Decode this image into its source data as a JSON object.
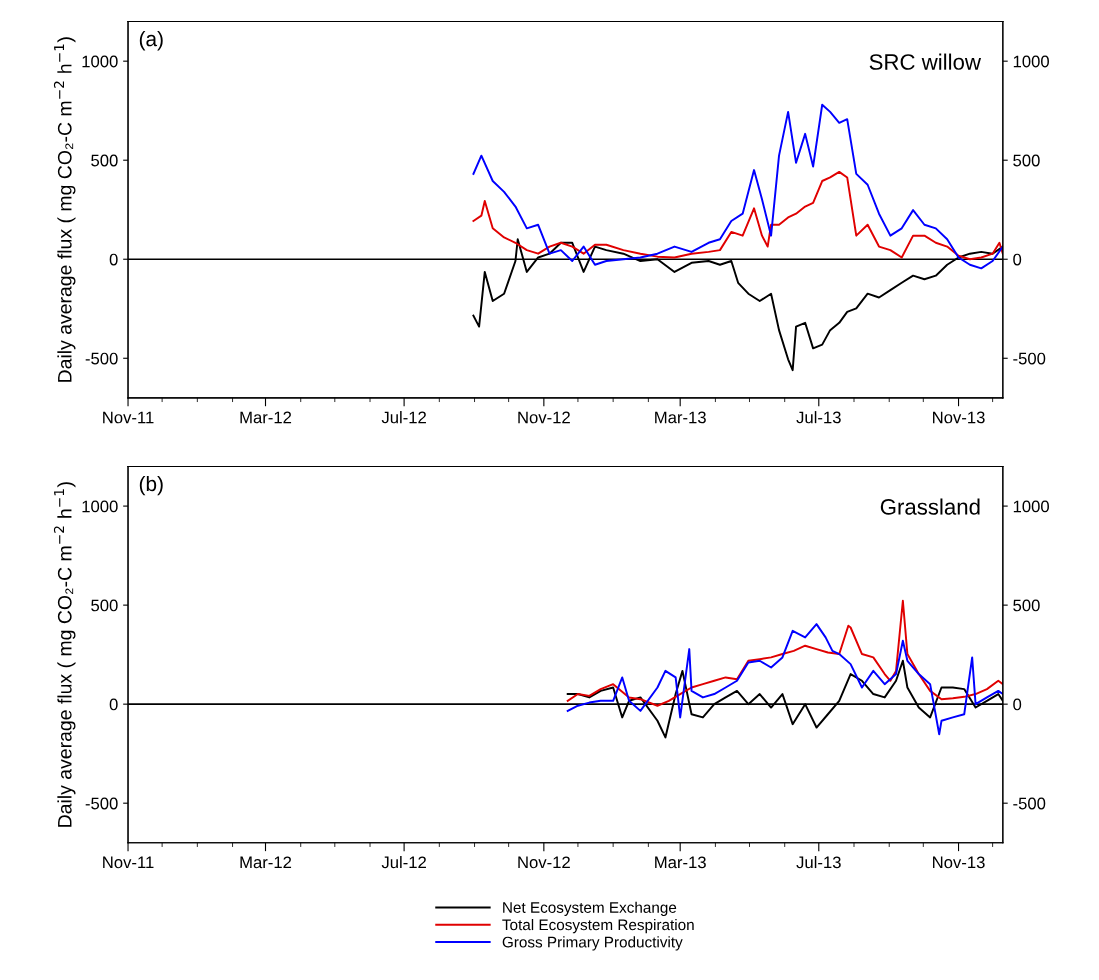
{
  "chart_data": [
    {
      "type": "line",
      "title": null,
      "ylabel": "Daily average flux ( mg CO₂-C m$^{−2}$ h$^{−1}$)",
      "annotations": [
        "(a)",
        "SRC willow"
      ],
      "xlim": [
        "2011-11-01",
        "2013-12-10"
      ],
      "xticks": [
        {
          "value": "2011-11-01",
          "label": "Nov-11"
        },
        {
          "value": "2012-03-01",
          "label": "Mar-12"
        },
        {
          "value": "2012-07-01",
          "label": "Jul-12"
        },
        {
          "value": "2012-11-01",
          "label": "Nov-12"
        },
        {
          "value": "2013-03-01",
          "label": "Mar-13"
        },
        {
          "value": "2013-07-01",
          "label": "Jul-13"
        },
        {
          "value": "2013-11-01",
          "label": "Nov-13"
        }
      ],
      "ylim": [
        -700,
        1200
      ],
      "yticks": [
        -500,
        0,
        500,
        1000
      ],
      "y2lim": [
        -700,
        1200
      ],
      "y2ticks": [
        -500,
        0,
        500,
        1000
      ],
      "ref_lines": [
        {
          "axis": "y",
          "value": 0,
          "color": "#000000"
        }
      ],
      "grid": false,
      "legend": false,
      "marker": "none",
      "line_style": "solid",
      "series": [
        {
          "color": "#000000",
          "x": [
            "2012-08-31",
            "2012-09-05",
            "2012-09-10",
            "2012-09-17",
            "2012-09-27",
            "2012-10-07",
            "2012-10-09",
            "2012-10-17",
            "2012-10-27",
            "2012-11-06",
            "2012-11-16",
            "2012-11-26",
            "2012-12-06",
            "2012-12-16",
            "2012-12-26",
            "2013-01-10",
            "2013-01-25",
            "2013-02-09",
            "2013-02-24",
            "2013-03-11",
            "2013-03-26",
            "2013-04-05",
            "2013-04-15",
            "2013-04-21",
            "2013-04-30",
            "2013-05-10",
            "2013-05-20",
            "2013-05-27",
            "2013-06-04",
            "2013-06-08",
            "2013-06-11",
            "2013-06-19",
            "2013-06-26",
            "2013-07-04",
            "2013-07-11",
            "2013-07-19",
            "2013-07-26",
            "2013-08-03",
            "2013-08-13",
            "2013-08-23",
            "2013-09-02",
            "2013-09-12",
            "2013-09-22",
            "2013-10-02",
            "2013-10-12",
            "2013-10-22",
            "2013-11-01",
            "2013-11-11",
            "2013-11-21",
            "2013-12-01",
            "2013-12-10"
          ],
          "values": [
            -285,
            -340,
            -64,
            -211,
            -174,
            -9,
            101,
            -64,
            9,
            28,
            83,
            83,
            -64,
            64,
            46,
            28,
            -9,
            0,
            -64,
            -18,
            -9,
            -28,
            -9,
            -119,
            -174,
            -211,
            -174,
            -358,
            -505,
            -560,
            -340,
            -321,
            -450,
            -431,
            -358,
            -321,
            -266,
            -248,
            -174,
            -193,
            -156,
            -119,
            -83,
            -101,
            -83,
            -28,
            9,
            28,
            37,
            28,
            64
          ]
        },
        {
          "color": "#e00000",
          "x": [
            "2012-08-31",
            "2012-09-07",
            "2012-09-10",
            "2012-09-17",
            "2012-09-27",
            "2012-10-07",
            "2012-10-17",
            "2012-10-27",
            "2012-11-06",
            "2012-11-16",
            "2012-11-26",
            "2012-12-06",
            "2012-12-16",
            "2012-12-26",
            "2013-01-10",
            "2013-01-25",
            "2013-02-09",
            "2013-02-24",
            "2013-03-11",
            "2013-03-26",
            "2013-04-05",
            "2013-04-15",
            "2013-04-25",
            "2013-05-05",
            "2013-05-12",
            "2013-05-17",
            "2013-05-20",
            "2013-05-27",
            "2013-06-04",
            "2013-06-11",
            "2013-06-19",
            "2013-06-26",
            "2013-07-04",
            "2013-07-11",
            "2013-07-19",
            "2013-07-26",
            "2013-08-03",
            "2013-08-13",
            "2013-08-23",
            "2013-09-02",
            "2013-09-12",
            "2013-09-22",
            "2013-10-02",
            "2013-10-12",
            "2013-10-22",
            "2013-11-01",
            "2013-11-11",
            "2013-11-21",
            "2013-12-01",
            "2013-12-07",
            "2013-12-10"
          ],
          "values": [
            193,
            220,
            294,
            156,
            110,
            83,
            46,
            28,
            64,
            83,
            64,
            28,
            73,
            73,
            46,
            28,
            13,
            9,
            28,
            37,
            46,
            138,
            119,
            257,
            119,
            64,
            174,
            174,
            211,
            230,
            266,
            285,
            395,
            413,
            441,
            413,
            119,
            174,
            64,
            46,
            9,
            119,
            119,
            83,
            64,
            18,
            0,
            9,
            28,
            83,
            28
          ]
        },
        {
          "color": "#0000ff",
          "x": [
            "2012-08-31",
            "2012-09-07",
            "2012-09-17",
            "2012-09-27",
            "2012-10-07",
            "2012-10-17",
            "2012-10-27",
            "2012-11-06",
            "2012-11-16",
            "2012-11-26",
            "2012-12-06",
            "2012-12-16",
            "2012-12-26",
            "2013-01-10",
            "2013-01-25",
            "2013-02-09",
            "2013-02-24",
            "2013-03-11",
            "2013-03-26",
            "2013-04-05",
            "2013-04-15",
            "2013-04-25",
            "2013-05-05",
            "2013-05-12",
            "2013-05-20",
            "2013-05-27",
            "2013-06-04",
            "2013-06-11",
            "2013-06-19",
            "2013-06-26",
            "2013-07-04",
            "2013-07-11",
            "2013-07-19",
            "2013-07-26",
            "2013-08-03",
            "2013-08-13",
            "2013-08-23",
            "2013-09-02",
            "2013-09-12",
            "2013-09-22",
            "2013-10-02",
            "2013-10-12",
            "2013-10-22",
            "2013-11-01",
            "2013-11-11",
            "2013-11-21",
            "2013-12-01",
            "2013-12-10"
          ],
          "values": [
            431,
            523,
            395,
            340,
            266,
            156,
            174,
            28,
            46,
            -9,
            64,
            -28,
            -9,
            0,
            9,
            28,
            64,
            37,
            83,
            101,
            193,
            230,
            450,
            303,
            119,
            523,
            744,
            487,
            633,
            468,
            780,
            744,
            689,
            707,
            431,
            376,
            230,
            119,
            156,
            248,
            174,
            156,
            101,
            9,
            -28,
            -46,
            -9,
            64
          ]
        }
      ]
    },
    {
      "type": "line",
      "title": null,
      "ylabel": "Daily average flux ( mg CO₂-C m$^{−2}$ h$^{−1}$)",
      "annotations": [
        "(b)",
        "Grassland"
      ],
      "xlim": [
        "2011-11-01",
        "2013-12-10"
      ],
      "xticks": [
        {
          "value": "2011-11-01",
          "label": "Nov-11"
        },
        {
          "value": "2012-03-01",
          "label": "Mar-12"
        },
        {
          "value": "2012-07-01",
          "label": "Jul-12"
        },
        {
          "value": "2012-11-01",
          "label": "Nov-12"
        },
        {
          "value": "2013-03-01",
          "label": "Mar-13"
        },
        {
          "value": "2013-07-01",
          "label": "Jul-13"
        },
        {
          "value": "2013-11-01",
          "label": "Nov-13"
        }
      ],
      "ylim": [
        -700,
        1200
      ],
      "yticks": [
        -500,
        0,
        500,
        1000
      ],
      "y2lim": [
        -700,
        1200
      ],
      "y2ticks": [
        -500,
        0,
        500,
        1000
      ],
      "ref_lines": [
        {
          "axis": "y",
          "value": 0,
          "color": "#000000"
        }
      ],
      "grid": false,
      "legend": "bottom",
      "marker": "none",
      "line_style": "solid",
      "series": [
        {
          "name": "Net Ecosystem Exchange",
          "color": "#000000",
          "x": [
            "2012-11-22",
            "2012-12-01",
            "2012-12-11",
            "2012-12-21",
            "2013-01-01",
            "2013-01-09",
            "2013-01-15",
            "2013-01-25",
            "2013-02-09",
            "2013-02-16",
            "2013-02-25",
            "2013-03-03",
            "2013-03-11",
            "2013-03-21",
            "2013-03-31",
            "2013-04-10",
            "2013-04-20",
            "2013-04-30",
            "2013-05-10",
            "2013-05-20",
            "2013-05-30",
            "2013-06-08",
            "2013-06-19",
            "2013-06-29",
            "2013-07-09",
            "2013-07-19",
            "2013-07-29",
            "2013-08-08",
            "2013-08-18",
            "2013-08-28",
            "2013-09-07",
            "2013-09-13",
            "2013-09-17",
            "2013-09-27",
            "2013-10-07",
            "2013-10-17",
            "2013-10-27",
            "2013-11-06",
            "2013-11-16",
            "2013-11-26",
            "2013-12-06",
            "2013-12-10"
          ],
          "values": [
            51,
            51,
            34,
            67,
            84,
            -67,
            17,
            34,
            -84,
            -168,
            51,
            168,
            -51,
            -67,
            0,
            34,
            67,
            0,
            51,
            -17,
            51,
            -101,
            0,
            -118,
            -51,
            17,
            152,
            118,
            51,
            34,
            118,
            219,
            84,
            -17,
            -67,
            84,
            84,
            76,
            -17,
            17,
            51,
            17
          ]
        },
        {
          "name": "Total Ecosystem Respiration",
          "color": "#e00000",
          "x": [
            "2012-11-22",
            "2012-12-01",
            "2012-12-11",
            "2012-12-21",
            "2013-01-01",
            "2013-01-15",
            "2013-01-25",
            "2013-02-09",
            "2013-02-19",
            "2013-03-01",
            "2013-03-11",
            "2013-03-21",
            "2013-03-31",
            "2013-04-10",
            "2013-04-20",
            "2013-04-30",
            "2013-05-10",
            "2013-05-20",
            "2013-05-30",
            "2013-06-09",
            "2013-06-19",
            "2013-06-29",
            "2013-07-09",
            "2013-07-19",
            "2013-07-27",
            "2013-07-29",
            "2013-08-08",
            "2013-08-18",
            "2013-08-28",
            "2013-09-02",
            "2013-09-07",
            "2013-09-13",
            "2013-09-17",
            "2013-09-27",
            "2013-10-07",
            "2013-10-17",
            "2013-10-27",
            "2013-11-06",
            "2013-11-16",
            "2013-11-26",
            "2013-12-06",
            "2013-12-10"
          ],
          "values": [
            17,
            51,
            42,
            76,
            101,
            34,
            25,
            -8,
            17,
            51,
            84,
            101,
            118,
            135,
            126,
            219,
            227,
            236,
            253,
            269,
            295,
            278,
            261,
            253,
            396,
            387,
            253,
            236,
            152,
            118,
            168,
            522,
            253,
            152,
            67,
            25,
            30,
            37,
            51,
            76,
            118,
            101
          ]
        },
        {
          "name": "Gross Primary Productivity",
          "color": "#0000ff",
          "x": [
            "2012-11-22",
            "2012-12-01",
            "2012-12-11",
            "2012-12-21",
            "2013-01-01",
            "2013-01-09",
            "2013-01-15",
            "2013-01-25",
            "2013-02-09",
            "2013-02-16",
            "2013-02-25",
            "2013-03-01",
            "2013-03-09",
            "2013-03-11",
            "2013-03-21",
            "2013-03-31",
            "2013-04-10",
            "2013-04-20",
            "2013-04-30",
            "2013-05-10",
            "2013-05-20",
            "2013-05-30",
            "2013-06-08",
            "2013-06-19",
            "2013-06-29",
            "2013-07-07",
            "2013-07-13",
            "2013-07-19",
            "2013-07-29",
            "2013-08-08",
            "2013-08-18",
            "2013-08-28",
            "2013-09-07",
            "2013-09-13",
            "2013-09-17",
            "2013-09-27",
            "2013-10-07",
            "2013-10-15",
            "2013-10-17",
            "2013-10-27",
            "2013-11-06",
            "2013-11-13",
            "2013-11-16",
            "2013-11-26",
            "2013-12-06",
            "2013-12-10"
          ],
          "values": [
            -34,
            -8,
            8,
            17,
            17,
            135,
            17,
            -34,
            84,
            168,
            135,
            -67,
            278,
            67,
            34,
            51,
            84,
            118,
            210,
            219,
            185,
            236,
            370,
            337,
            404,
            337,
            269,
            253,
            202,
            84,
            168,
            101,
            152,
            320,
            219,
            152,
            101,
            -152,
            -84,
            -67,
            -51,
            236,
            0,
            34,
            67,
            51
          ]
        }
      ]
    }
  ]
}
